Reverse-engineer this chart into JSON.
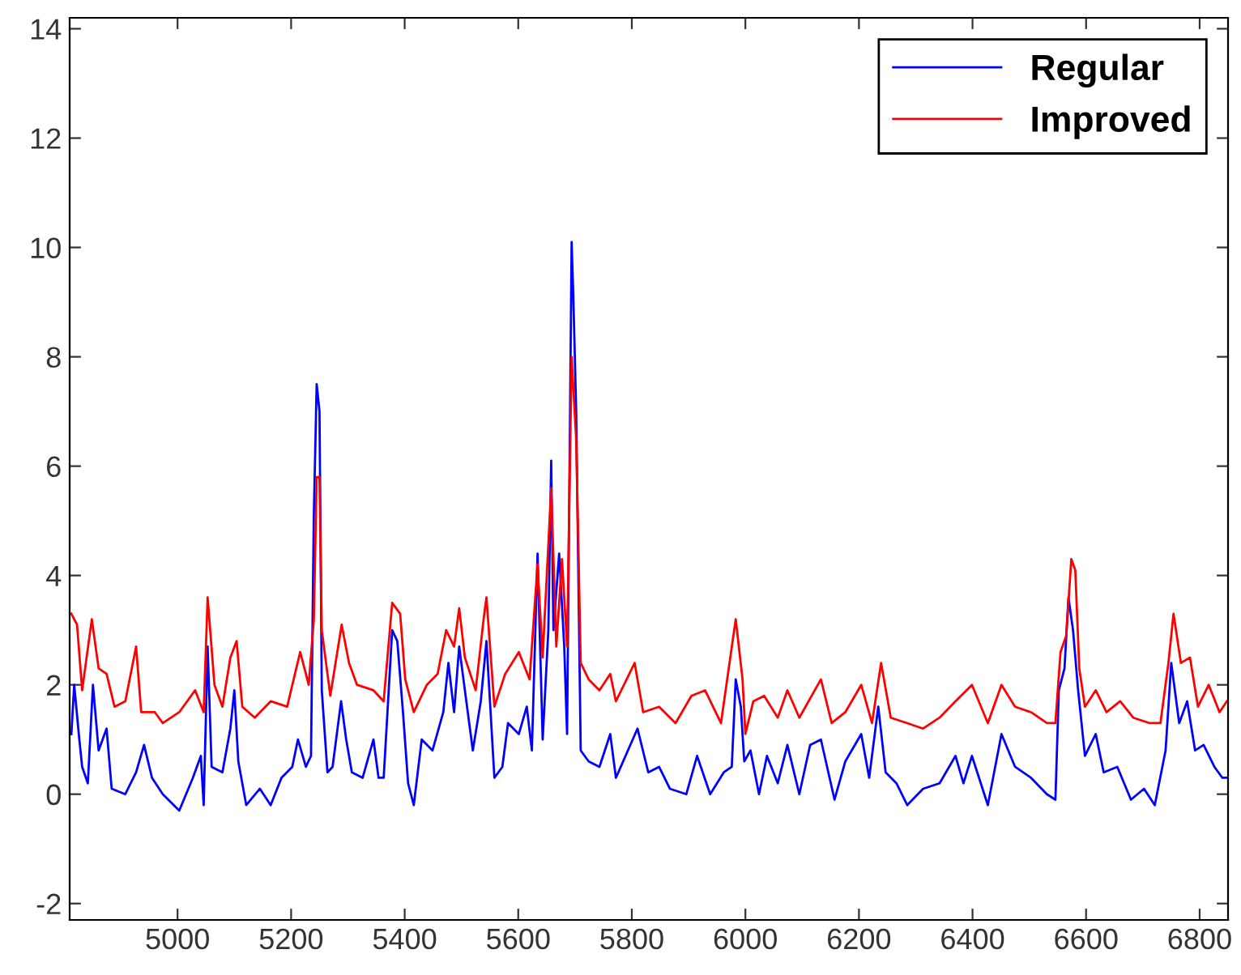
{
  "chart_data": {
    "type": "line",
    "xlim": [
      4810,
      6850
    ],
    "ylim": [
      -2.3,
      14.2
    ],
    "xticks": [
      5000,
      5200,
      5400,
      5600,
      5800,
      6000,
      6200,
      6400,
      6600,
      6800
    ],
    "yticks": [
      -2,
      0,
      2,
      4,
      6,
      8,
      10,
      12,
      14
    ],
    "grid": false,
    "legend": "top right",
    "marker": "none",
    "line_style": "solid",
    "series": [
      {
        "name": "Regular",
        "color": "#0000ff",
        "x": [
          4813,
          4818,
          4827,
          4832,
          4842,
          4851,
          4861,
          4875,
          4884,
          4908,
          4927,
          4941,
          4955,
          4974,
          5003,
          5027,
          5041,
          5046,
          5053,
          5060,
          5079,
          5093,
          5100,
          5107,
          5121,
          5145,
          5164,
          5183,
          5202,
          5212,
          5226,
          5235,
          5240,
          5245,
          5250,
          5254,
          5264,
          5273,
          5288,
          5297,
          5307,
          5326,
          5345,
          5354,
          5363,
          5378,
          5387,
          5397,
          5406,
          5416,
          5430,
          5449,
          5468,
          5477,
          5487,
          5496,
          5506,
          5520,
          5534,
          5544,
          5558,
          5572,
          5582,
          5601,
          5615,
          5624,
          5634,
          5643,
          5653,
          5658,
          5662,
          5672,
          5681,
          5686,
          5694,
          5697,
          5702,
          5710,
          5724,
          5743,
          5762,
          5772,
          5810,
          5829,
          5848,
          5867,
          5896,
          5915,
          5938,
          5962,
          5976,
          5983,
          5992,
          5998,
          6009,
          6024,
          6038,
          6057,
          6074,
          6095,
          6114,
          6133,
          6157,
          6176,
          6204,
          6218,
          6234,
          6247,
          6266,
          6285,
          6313,
          6342,
          6370,
          6384,
          6399,
          6427,
          6451,
          6475,
          6503,
          6531,
          6546,
          6552,
          6562,
          6569,
          6577,
          6586,
          6598,
          6617,
          6631,
          6655,
          6679,
          6702,
          6721,
          6740,
          6750,
          6764,
          6778,
          6792,
          6807,
          6826,
          6840,
          6848
        ],
        "values": [
          1.1,
          2.0,
          1.0,
          0.5,
          0.2,
          2.0,
          0.8,
          1.2,
          0.1,
          0.0,
          0.4,
          0.9,
          0.3,
          0.0,
          -0.3,
          0.3,
          0.7,
          -0.2,
          2.7,
          0.5,
          0.4,
          1.2,
          1.9,
          0.6,
          -0.2,
          0.1,
          -0.2,
          0.3,
          0.5,
          1.0,
          0.5,
          0.7,
          5.1,
          7.5,
          7.0,
          1.9,
          0.4,
          0.5,
          1.7,
          1.0,
          0.4,
          0.3,
          1.0,
          0.3,
          0.3,
          3.0,
          2.8,
          1.5,
          0.2,
          -0.2,
          1.0,
          0.8,
          1.5,
          2.4,
          1.5,
          2.7,
          1.9,
          0.8,
          1.7,
          2.8,
          0.3,
          0.5,
          1.3,
          1.1,
          1.6,
          0.8,
          4.4,
          1.0,
          3.0,
          6.1,
          3.0,
          4.4,
          2.7,
          1.1,
          10.1,
          9.1,
          7.0,
          0.8,
          0.6,
          0.5,
          1.1,
          0.3,
          1.2,
          0.4,
          0.5,
          0.1,
          0.0,
          0.7,
          0.0,
          0.4,
          0.5,
          2.1,
          1.6,
          0.6,
          0.8,
          0.0,
          0.7,
          0.2,
          0.9,
          0.0,
          0.9,
          1.0,
          -0.1,
          0.6,
          1.1,
          0.3,
          1.6,
          0.4,
          0.2,
          -0.2,
          0.1,
          0.2,
          0.7,
          0.2,
          0.7,
          -0.2,
          1.1,
          0.5,
          0.3,
          0.0,
          -0.1,
          1.9,
          2.3,
          3.6,
          3.0,
          1.9,
          0.7,
          1.1,
          0.4,
          0.5,
          -0.1,
          0.1,
          -0.2,
          0.8,
          2.4,
          1.3,
          1.7,
          0.8,
          0.9,
          0.5,
          0.3,
          0.3
        ]
      },
      {
        "name": "Improved",
        "color": "#ff0000",
        "x": [
          4813,
          4823,
          4832,
          4849,
          4861,
          4875,
          4889,
          4908,
          4927,
          4936,
          4960,
          4974,
          5003,
          5031,
          5046,
          5053,
          5065,
          5079,
          5093,
          5104,
          5114,
          5136,
          5164,
          5193,
          5216,
          5231,
          5240,
          5245,
          5250,
          5254,
          5269,
          5289,
          5302,
          5316,
          5345,
          5363,
          5378,
          5392,
          5401,
          5416,
          5439,
          5458,
          5473,
          5487,
          5496,
          5506,
          5525,
          5539,
          5544,
          5558,
          5577,
          5601,
          5620,
          5634,
          5643,
          5658,
          5667,
          5677,
          5686,
          5694,
          5702,
          5710,
          5724,
          5743,
          5762,
          5772,
          5805,
          5820,
          5848,
          5877,
          5905,
          5929,
          5957,
          5983,
          5995,
          6000,
          6014,
          6033,
          6057,
          6074,
          6095,
          6133,
          6152,
          6176,
          6204,
          6223,
          6239,
          6256,
          6285,
          6313,
          6342,
          6370,
          6399,
          6427,
          6451,
          6475,
          6503,
          6531,
          6546,
          6555,
          6565,
          6574,
          6581,
          6588,
          6598,
          6617,
          6636,
          6660,
          6683,
          6712,
          6731,
          6745,
          6754,
          6767,
          6783,
          6797,
          6816,
          6835,
          6848
        ],
        "values": [
          3.3,
          3.1,
          1.9,
          3.2,
          2.3,
          2.2,
          1.6,
          1.7,
          2.7,
          1.5,
          1.5,
          1.3,
          1.5,
          1.9,
          1.5,
          3.6,
          2.0,
          1.6,
          2.5,
          2.8,
          1.6,
          1.4,
          1.7,
          1.6,
          2.6,
          2.0,
          3.2,
          5.8,
          5.8,
          3.0,
          1.8,
          3.1,
          2.4,
          2.0,
          1.9,
          1.7,
          3.5,
          3.3,
          2.1,
          1.5,
          2.0,
          2.2,
          3.0,
          2.7,
          3.4,
          2.5,
          1.9,
          3.2,
          3.6,
          1.6,
          2.2,
          2.6,
          2.1,
          4.2,
          2.5,
          5.6,
          2.7,
          4.3,
          2.7,
          8.0,
          6.5,
          2.4,
          2.1,
          1.9,
          2.2,
          1.7,
          2.4,
          1.5,
          1.6,
          1.3,
          1.8,
          1.9,
          1.3,
          3.2,
          2.1,
          1.1,
          1.7,
          1.8,
          1.4,
          1.9,
          1.4,
          2.1,
          1.3,
          1.5,
          2.0,
          1.3,
          2.4,
          1.4,
          1.3,
          1.2,
          1.4,
          1.7,
          2.0,
          1.3,
          2.0,
          1.6,
          1.5,
          1.3,
          1.3,
          2.6,
          2.9,
          4.3,
          4.1,
          2.3,
          1.6,
          1.9,
          1.5,
          1.7,
          1.4,
          1.3,
          1.3,
          2.4,
          3.3,
          2.4,
          2.5,
          1.6,
          2.0,
          1.5,
          1.7
        ]
      }
    ]
  }
}
